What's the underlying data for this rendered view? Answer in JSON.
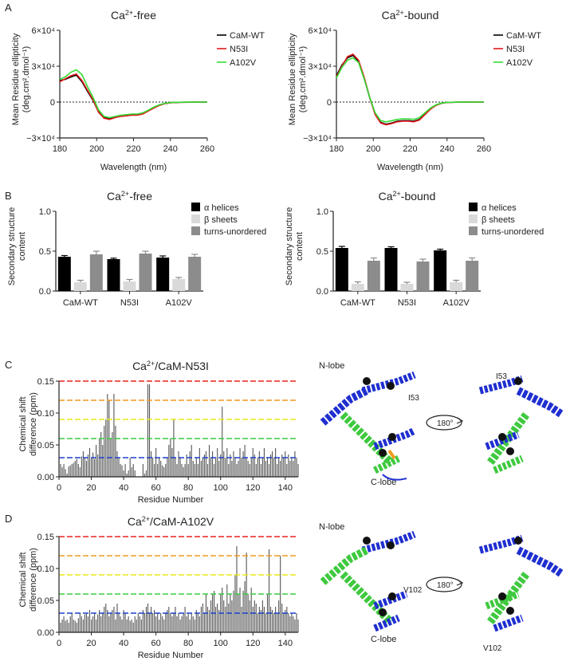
{
  "panel_labels": [
    "A",
    "B",
    "C",
    "D"
  ],
  "cd_ylabel_line1": "Mean Residue ellipticity",
  "cd_ylabel_line2": "(deg.cm².dmol⁻¹)",
  "cd_xlabel": "Wavelength (nm)",
  "cd_yticks": [
    "6×10⁴",
    "3×10⁴",
    "0",
    "−3×10⁴"
  ],
  "ss_ylabel_line1": "Secondary structure",
  "ss_ylabel_line2": "content",
  "nmr_ylabel_line1": "Chemical shift",
  "nmr_ylabel_line2": "difference (ppm)",
  "nmr_xlabel": "Residue Number",
  "structure": {
    "n_lobe": "N-lobe",
    "c_lobe": "C-lobe",
    "rotation": "180°",
    "c_label_1": "I53",
    "c_label_2": "I53",
    "d_label_1": "V102",
    "d_label_2": "V102"
  },
  "colors": {
    "wt": "#000000",
    "n53i": "#e31a1c",
    "a102v": "#33dd33",
    "alpha": "#000000",
    "beta": "#d9d9d9",
    "turns": "#8c8c8c",
    "helix_blue": "#1f2fd0",
    "helix_green": "#3fc93f"
  },
  "chart_data": [
    {
      "type": "line",
      "title": "Ca2+-free",
      "title_main": "Ca",
      "title_sup": "2+",
      "title_rest": "-free",
      "xlabel": "Wavelength (nm)",
      "ylabel": "Mean Residue ellipticity (deg.cm2.dmol-1)",
      "xlim": [
        180,
        260
      ],
      "ylim": [
        -30000,
        60000
      ],
      "xticks": [
        "180",
        "200",
        "220",
        "240",
        "260"
      ],
      "x": [
        180,
        183,
        186,
        189,
        192,
        195,
        198,
        201,
        204,
        207,
        210,
        213,
        216,
        219,
        222,
        225,
        228,
        231,
        234,
        237,
        240,
        245,
        250,
        255,
        260
      ],
      "series": [
        {
          "name": "CaM-WT",
          "values": [
            18000,
            19000,
            21000,
            22500,
            17000,
            9000,
            1500,
            -8000,
            -13000,
            -14000,
            -12500,
            -11500,
            -11000,
            -10500,
            -10500,
            -9500,
            -7000,
            -4500,
            -2500,
            -1200,
            -500,
            -200,
            -100,
            -50,
            0
          ]
        },
        {
          "name": "N53I",
          "values": [
            17000,
            19500,
            22000,
            23500,
            18000,
            10000,
            2000,
            -8500,
            -13500,
            -14500,
            -13000,
            -12000,
            -11500,
            -11000,
            -11000,
            -10000,
            -7500,
            -5000,
            -2800,
            -1300,
            -500,
            -200,
            -100,
            -50,
            0
          ]
        },
        {
          "name": "A102V",
          "values": [
            19000,
            21000,
            25000,
            27000,
            23000,
            13000,
            4000,
            -6500,
            -12000,
            -13000,
            -12000,
            -11000,
            -10500,
            -10000,
            -10000,
            -9000,
            -6800,
            -4200,
            -2300,
            -1100,
            -400,
            -150,
            -80,
            -40,
            0
          ]
        }
      ],
      "grid": false,
      "legend": "top-right"
    },
    {
      "type": "line",
      "title": "Ca2+-bound",
      "title_main": "Ca",
      "title_sup": "2+",
      "title_rest": "-bound",
      "xlabel": "Wavelength (nm)",
      "ylabel": "Mean Residue ellipticity (deg.cm2.dmol-1)",
      "xlim": [
        180,
        260
      ],
      "ylim": [
        -30000,
        60000
      ],
      "xticks": [
        "180",
        "200",
        "220",
        "240",
        "260"
      ],
      "x": [
        180,
        183,
        186,
        189,
        192,
        195,
        198,
        201,
        204,
        207,
        210,
        213,
        216,
        219,
        222,
        225,
        228,
        231,
        234,
        237,
        240,
        245,
        250,
        255,
        260
      ],
      "series": [
        {
          "name": "CaM-WT",
          "values": [
            22000,
            31000,
            37000,
            39000,
            34000,
            20000,
            4000,
            -10000,
            -17000,
            -18500,
            -17500,
            -16000,
            -15500,
            -15500,
            -16000,
            -14500,
            -10000,
            -5500,
            -2500,
            -1000,
            -300,
            -100,
            -50,
            -20,
            0
          ]
        },
        {
          "name": "N53I",
          "values": [
            21000,
            30000,
            38000,
            40000,
            35000,
            21000,
            4500,
            -10500,
            -17500,
            -19000,
            -18000,
            -16500,
            -16000,
            -16000,
            -16500,
            -15000,
            -10500,
            -6000,
            -2700,
            -1100,
            -300,
            -100,
            -50,
            -20,
            0
          ]
        },
        {
          "name": "A102V",
          "values": [
            20000,
            29000,
            35000,
            37000,
            33000,
            19500,
            4500,
            -9000,
            -15500,
            -16500,
            -15500,
            -14500,
            -14000,
            -14000,
            -14500,
            -13000,
            -9000,
            -5000,
            -2300,
            -900,
            -250,
            -80,
            -40,
            -15,
            0
          ]
        }
      ],
      "grid": false,
      "legend": "top-right"
    },
    {
      "type": "bar",
      "title": "Ca2+-free",
      "title_main": "Ca",
      "title_sup": "2+",
      "title_rest": "-free",
      "ylabel": "Secondary structure content",
      "ylim": [
        0,
        1.0
      ],
      "yticks": [
        "0.0",
        "0.5",
        "1.0"
      ],
      "categories": [
        "CaM-WT",
        "N53I",
        "A102V"
      ],
      "series": [
        {
          "name": "α helices",
          "values": [
            0.43,
            0.4,
            0.42
          ],
          "errors": [
            0.015,
            0.012,
            0.02
          ]
        },
        {
          "name": "β sheets",
          "values": [
            0.11,
            0.12,
            0.15
          ],
          "errors": [
            0.025,
            0.025,
            0.02
          ]
        },
        {
          "name": "turns-unordered",
          "values": [
            0.46,
            0.47,
            0.43
          ],
          "errors": [
            0.04,
            0.03,
            0.03
          ]
        }
      ],
      "legend": "top-right"
    },
    {
      "type": "bar",
      "title": "Ca2+-bound",
      "title_main": "Ca",
      "title_sup": "2+",
      "title_rest": "-bound",
      "ylabel": "Secondary structure content",
      "ylim": [
        0,
        1.0
      ],
      "yticks": [
        "0.0",
        "0.5",
        "1.0"
      ],
      "categories": [
        "CaM-WT",
        "N53I",
        "A102V"
      ],
      "series": [
        {
          "name": "α helices",
          "values": [
            0.54,
            0.54,
            0.51
          ],
          "errors": [
            0.02,
            0.015,
            0.015
          ]
        },
        {
          "name": "β sheets",
          "values": [
            0.09,
            0.09,
            0.11
          ],
          "errors": [
            0.025,
            0.02,
            0.025
          ]
        },
        {
          "name": "turns-unordered",
          "values": [
            0.38,
            0.37,
            0.38
          ],
          "errors": [
            0.035,
            0.03,
            0.035
          ]
        }
      ],
      "legend": "top-right"
    },
    {
      "type": "bar",
      "title": "Ca2+/CaM-N53I",
      "title_main": "Ca",
      "title_sup": "2+",
      "title_rest": "/CaM-N53I",
      "xlabel": "Residue Number",
      "ylabel": "Chemical shift difference (ppm)",
      "xlim": [
        0,
        148
      ],
      "ylim": [
        0,
        0.15
      ],
      "xticks": [
        "0",
        "20",
        "40",
        "60",
        "80",
        "100",
        "120",
        "140"
      ],
      "yticks": [
        "0.00",
        "0.05",
        "0.10",
        "0.15"
      ],
      "thresholds": [
        {
          "value": 0.15,
          "color": "#e8231f"
        },
        {
          "value": 0.12,
          "color": "#f39a1e"
        },
        {
          "value": 0.09,
          "color": "#e8e81c"
        },
        {
          "value": 0.06,
          "color": "#3fc93f"
        },
        {
          "value": 0.03,
          "color": "#1f3fd0"
        }
      ],
      "values": [
        0.02,
        0.015,
        0.02,
        0.012,
        0.005,
        0.016,
        0.018,
        0.02,
        0.022,
        0.025,
        0.028,
        0.02,
        0.015,
        0.032,
        0.04,
        0.03,
        0.025,
        0.035,
        0.045,
        0.03,
        0.038,
        0.028,
        0.05,
        0.035,
        0.06,
        0.07,
        0.05,
        0.08,
        0.09,
        0.13,
        0.12,
        0.06,
        0.07,
        0.13,
        0.08,
        0.04,
        0.03,
        0.02,
        0.018,
        0.01,
        0.02,
        0.005,
        0.01,
        0.03,
        0.015,
        0.02,
        0.01,
        0.0,
        0.0,
        0.0,
        0.0,
        0.02,
        0.005,
        0.01,
        0.145,
        0.145,
        0.04,
        0.03,
        0.02,
        0.045,
        0.02,
        0.03,
        0.025,
        0.018,
        0.015,
        0.02,
        0.03,
        0.05,
        0.06,
        0.045,
        0.09,
        0.03,
        0.02,
        0.04,
        0.03,
        0.02,
        0.015,
        0.02,
        0.035,
        0.02,
        0.04,
        0.05,
        0.025,
        0.02,
        0.03,
        0.02,
        0.045,
        0.025,
        0.03,
        0.035,
        0.04,
        0.02,
        0.05,
        0.03,
        0.04,
        0.02,
        0.03,
        0.045,
        0.025,
        0.035,
        0.11,
        0.04,
        0.03,
        0.045,
        0.02,
        0.035,
        0.025,
        0.04,
        0.03,
        0.02,
        0.025,
        0.045,
        0.03,
        0.04,
        0.05,
        0.03,
        0.025,
        0.02,
        0.03,
        0.045,
        0.035,
        0.02,
        0.03,
        0.04,
        0.02,
        0.03,
        0.045,
        0.025,
        0.03,
        0.02,
        0.035,
        0.04,
        0.03,
        0.045,
        0.02,
        0.03,
        0.025,
        0.035,
        0.03,
        0.04,
        0.02,
        0.035,
        0.025,
        0.03,
        0.025,
        0.04,
        0.03,
        0.02
      ]
    },
    {
      "type": "bar",
      "title": "Ca2+/CaM-A102V",
      "title_main": "Ca",
      "title_sup": "2+",
      "title_rest": "/CaM-A102V",
      "xlabel": "Residue Number",
      "ylabel": "Chemical shift difference (ppm)",
      "xlim": [
        0,
        148
      ],
      "ylim": [
        0,
        0.15
      ],
      "xticks": [
        "0",
        "20",
        "40",
        "60",
        "80",
        "100",
        "120",
        "140"
      ],
      "yticks": [
        "0.00",
        "0.05",
        "0.10",
        "0.15"
      ],
      "thresholds": [
        {
          "value": 0.15,
          "color": "#e8231f"
        },
        {
          "value": 0.12,
          "color": "#f39a1e"
        },
        {
          "value": 0.09,
          "color": "#e8e81c"
        },
        {
          "value": 0.06,
          "color": "#3fc93f"
        },
        {
          "value": 0.03,
          "color": "#1f3fd0"
        }
      ],
      "values": [
        0.015,
        0.02,
        0.025,
        0.018,
        0.02,
        0.015,
        0.025,
        0.03,
        0.02,
        0.018,
        0.015,
        0.022,
        0.03,
        0.025,
        0.02,
        0.028,
        0.03,
        0.025,
        0.035,
        0.02,
        0.025,
        0.03,
        0.02,
        0.028,
        0.035,
        0.025,
        0.03,
        0.04,
        0.045,
        0.035,
        0.025,
        0.03,
        0.035,
        0.04,
        0.02,
        0.045,
        0.03,
        0.025,
        0.02,
        0.035,
        0.03,
        0.02,
        0.025,
        0.018,
        0.02,
        0.015,
        0.025,
        0.02,
        0.03,
        0.025,
        0.02,
        0.035,
        0.03,
        0.04,
        0.045,
        0.03,
        0.04,
        0.03,
        0.035,
        0.025,
        0.03,
        0.02,
        0.03,
        0.025,
        0.02,
        0.03,
        0.035,
        0.04,
        0.03,
        0.025,
        0.03,
        0.04,
        0.025,
        0.03,
        0.02,
        0.025,
        0.03,
        0.04,
        0.025,
        0.03,
        0.02,
        0.03,
        0.025,
        0.02,
        0.035,
        0.03,
        0.025,
        0.04,
        0.045,
        0.03,
        0.06,
        0.04,
        0.035,
        0.05,
        0.06,
        0.065,
        0.04,
        0.045,
        0.035,
        0.06,
        0.07,
        0.05,
        0.04,
        0.075,
        0.045,
        0.06,
        0.05,
        0.065,
        0.09,
        0.135,
        0.06,
        0.07,
        0.04,
        0.065,
        0.08,
        0.125,
        0.06,
        0.05,
        0.07,
        0.04,
        0.05,
        0.045,
        0.03,
        0.04,
        0.035,
        0.05,
        0.04,
        0.03,
        0.06,
        0.13,
        0.04,
        0.035,
        0.03,
        0.04,
        0.03,
        0.05,
        0.12,
        0.045,
        0.03,
        0.035,
        0.04,
        0.03,
        0.025,
        0.03,
        0.025,
        0.02,
        0.03,
        0.02
      ]
    }
  ]
}
